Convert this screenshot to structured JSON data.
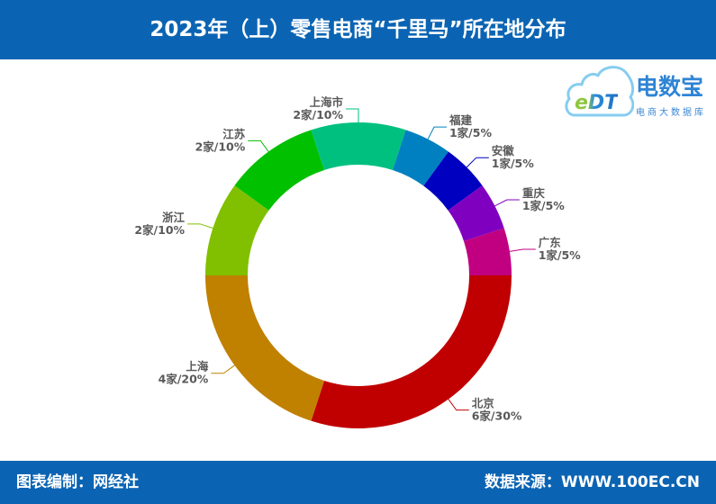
{
  "theme": {
    "banner_color": "#0b64b3",
    "label_color": "#595959"
  },
  "logo": {
    "mark": "eDT",
    "name": "电数宝",
    "tagline": "电商大数据库"
  },
  "footer": {
    "compiler": "图表编制：网经社",
    "source": "数据来源：WWW.100EC.CN"
  },
  "chart_data": {
    "type": "pie",
    "donut": true,
    "title": "2023年（上）零售电商“千里马”所在地分布",
    "categories": [
      "北京",
      "上海",
      "浙江",
      "江苏",
      "上海市",
      "福建",
      "安徽",
      "重庆",
      "广东"
    ],
    "values": [
      6,
      4,
      2,
      2,
      2,
      1,
      1,
      1,
      1
    ],
    "data_labels": [
      "6家/30%",
      "4家/20%",
      "2家/10%",
      "2家/10%",
      "2家/10%",
      "1家/5%",
      "1家/5%",
      "1家/5%",
      "1家/5%"
    ],
    "colors": [
      "#c00000",
      "#c08000",
      "#80c000",
      "#00c000",
      "#00c080",
      "#0080c0",
      "#0000c0",
      "#8000c0",
      "#c00080"
    ]
  }
}
